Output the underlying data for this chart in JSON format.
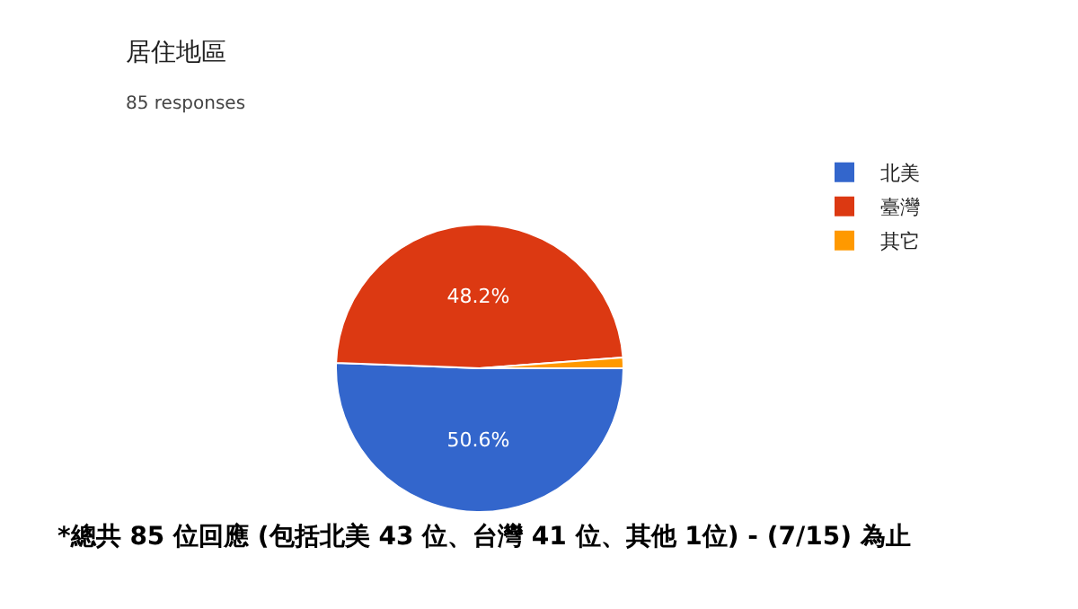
{
  "chart_data": {
    "type": "pie",
    "title": "居住地區",
    "subtitle": "85 responses",
    "categories": [
      "北美",
      "臺灣",
      "其它"
    ],
    "values": [
      50.6,
      48.2,
      1.2
    ],
    "value_labels": [
      "50.6%",
      "48.2%",
      null
    ],
    "colors": [
      "#3366cc",
      "#dc3912",
      "#ff9900"
    ],
    "legend": "right",
    "annotations": [
      "*總共 85 位回應 (包括北美 43 位、台灣 41 位、其他 1位) - (7/15) 為止"
    ]
  }
}
